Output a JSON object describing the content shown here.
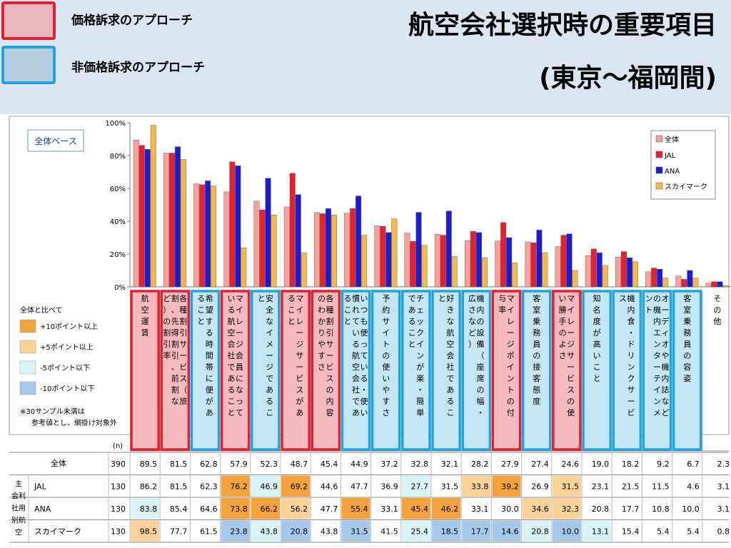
{
  "header": {
    "legend_price": "価格訴求のアプローチ",
    "legend_nonprice": "非価格訴求のアプローチ",
    "title_line1": "航空会社選択時の重要項目",
    "title_line2": "(東京～福岡間)",
    "price_color": "#e0202c",
    "price_fill": "#f6b9bf",
    "nonprice_color": "#1fa5dc",
    "nonprice_fill": "#c4e6f4"
  },
  "chart_data": {
    "type": "bar",
    "base_label": "全体ベース",
    "ylim": [
      0,
      100
    ],
    "yticks": [
      "0%",
      "20%",
      "40%",
      "60%",
      "80%",
      "100%"
    ],
    "n_label": "(n)",
    "categories": [
      "航空運賃",
      "各種割引サービス（旅割、先得割引、前割など）の割引率",
      "希望する時間帯に便があること",
      "マイレージ会員になっている航空会社であること",
      "安全なイメージであること",
      "マイレージサービスがあること",
      "各種割引サービスの内容のわかりやすさ",
      "いつも使っている・使い慣れている航空会社であること",
      "予約サイトの使いやすさ",
      "チェックインが楽・簡単であること",
      "好きな航空会社であること",
      "機内の設備（座席の幅・広さなど）",
      "マイレージポイントの付与率",
      "客室乗務員の接客態度",
      "マイレージサービスの使い勝手のよさ",
      "知名度が高いこと",
      "機内食・ドリンクサービス",
      "オーディオや機内誌などの機内エンターテインメント",
      "客室乗務員の容姿",
      "その他"
    ],
    "category_display": [
      [
        "航空運賃"
      ],
      [
        "各種割引サービス（旅",
        "割、先得割引、前割な",
        "ど）の割引率"
      ],
      [
        "希望する時間帯に便があ",
        "ること"
      ],
      [
        "マイレージ会員になって",
        "いる航空会社であること"
      ],
      [
        "安全なイメージであるこ",
        "と"
      ],
      [
        "マイレージサービスがあ",
        "ること"
      ],
      [
        "各種割引サービスの内容",
        "のわかりやすさ"
      ],
      [
        "いつも使っている・使い",
        "慣れている航空会社であ",
        "ること"
      ],
      [
        "予約サイトの使いやすさ"
      ],
      [
        "チェックインが楽・簡単",
        "であること"
      ],
      [
        "好きな航空会社であるこ",
        "と"
      ],
      [
        "機内の設備（座席の幅・",
        "広さなど）"
      ],
      [
        "マイレージポイントの付",
        "与率"
      ],
      [
        "客室乗務員の接客態度"
      ],
      [
        "マイレージサービスの使",
        "い勝手のよさ"
      ],
      [
        "知名度が高いこと"
      ],
      [
        "機内食・ドリンクサービ",
        "ス"
      ],
      [
        "オーディオや機内誌など",
        "の機内エンターテインメ",
        "ント"
      ],
      [
        "客室乗務員の容姿"
      ],
      [
        "その他"
      ]
    ],
    "category_type": [
      "price",
      "price",
      "nonprice",
      "price",
      "nonprice",
      "price",
      "price",
      "nonprice",
      "nonprice",
      "nonprice",
      "nonprice",
      "nonprice",
      "price",
      "nonprice",
      "price",
      "nonprice",
      "nonprice",
      "nonprice",
      "nonprice",
      "none"
    ],
    "series": [
      {
        "name": "全体",
        "n": 390,
        "color": "#f4a29a",
        "values": [
          89.5,
          81.5,
          62.8,
          57.9,
          52.3,
          48.7,
          45.4,
          44.9,
          37.2,
          32.8,
          32.1,
          28.2,
          27.9,
          27.4,
          24.6,
          19.0,
          18.2,
          9.2,
          6.7,
          2.3
        ]
      },
      {
        "name": "JAL",
        "n": 130,
        "color": "#e8202e",
        "values": [
          86.2,
          81.5,
          62.3,
          76.2,
          46.9,
          69.2,
          44.6,
          47.7,
          36.9,
          27.7,
          31.5,
          33.8,
          39.2,
          26.9,
          31.5,
          23.1,
          21.5,
          11.5,
          4.6,
          3.1
        ]
      },
      {
        "name": "ANA",
        "n": 130,
        "color": "#1b1bd6",
        "values": [
          83.8,
          85.4,
          64.6,
          73.8,
          66.2,
          56.2,
          47.7,
          55.4,
          33.1,
          45.4,
          46.2,
          33.1,
          30.0,
          34.6,
          32.3,
          20.8,
          17.7,
          10.8,
          10.0,
          3.1
        ]
      },
      {
        "name": "スカイマーク",
        "n": 130,
        "color": "#f5b849",
        "values": [
          98.5,
          77.7,
          61.5,
          23.8,
          43.8,
          20.8,
          43.8,
          31.5,
          41.5,
          25.4,
          18.5,
          17.7,
          14.6,
          20.8,
          10.0,
          13.1,
          15.4,
          5.4,
          5.4,
          0.8
        ]
      }
    ],
    "table": {
      "row_total_label": "全体",
      "group_label": "主利用航空会社別",
      "group_label_lines": [
        "主",
        "会利",
        "社用",
        "別航",
        "空"
      ],
      "rows": [
        {
          "label": "全体",
          "n": "390",
          "cells": [
            "89.5",
            "81.5",
            "62.8",
            "57.9",
            "52.3",
            "48.7",
            "45.4",
            "44.9",
            "37.2",
            "32.8",
            "32.1",
            "28.2",
            "27.9",
            "27.4",
            "24.6",
            "19.0",
            "18.2",
            "9.2",
            "6.7",
            "2.3"
          ],
          "highlight": [
            "",
            "",
            "",
            "",
            "",
            "",
            "",
            "",
            "",
            "",
            "",
            "",
            "",
            "",
            "",
            "",
            "",
            "",
            "",
            ""
          ]
        },
        {
          "label": "JAL",
          "n": "130",
          "cells": [
            "86.2",
            "81.5",
            "62.3",
            "76.2",
            "46.9",
            "69.2",
            "44.6",
            "47.7",
            "36.9",
            "27.7",
            "31.5",
            "33.8",
            "39.2",
            "26.9",
            "31.5",
            "23.1",
            "21.5",
            "11.5",
            "4.6",
            "3.1"
          ],
          "highlight": [
            "",
            "",
            "",
            "p10",
            "m5",
            "p10",
            "",
            "",
            "",
            "m5",
            "",
            "p5",
            "p10",
            "",
            "p5",
            "",
            "",
            "",
            "",
            ""
          ]
        },
        {
          "label": "ANA",
          "n": "130",
          "cells": [
            "83.8",
            "85.4",
            "64.6",
            "73.8",
            "66.2",
            "56.2",
            "47.7",
            "55.4",
            "33.1",
            "45.4",
            "46.2",
            "33.1",
            "30.0",
            "34.6",
            "32.3",
            "20.8",
            "17.7",
            "10.8",
            "10.0",
            "3.1"
          ],
          "highlight": [
            "m5",
            "",
            "",
            "p10",
            "p10",
            "p5",
            "",
            "p10",
            "",
            "p10",
            "p10",
            "",
            "",
            "p5",
            "p5",
            "",
            "",
            "",
            "",
            ""
          ]
        },
        {
          "label": "スカイマーク",
          "n": "130",
          "cells": [
            "98.5",
            "77.7",
            "61.5",
            "23.8",
            "43.8",
            "20.8",
            "43.8",
            "31.5",
            "41.5",
            "25.4",
            "18.5",
            "17.7",
            "14.6",
            "20.8",
            "10.0",
            "13.1",
            "15.4",
            "5.4",
            "5.4",
            "0.8"
          ],
          "highlight": [
            "p5",
            "",
            "",
            "m10",
            "m5",
            "m10",
            "",
            "m10",
            "",
            "m5",
            "m10",
            "m10",
            "m10",
            "m5",
            "m10",
            "m5",
            "",
            "",
            "",
            ""
          ]
        }
      ]
    },
    "comparison_legend": {
      "title": "全体と比べて",
      "items": [
        {
          "key": "p10",
          "label": "+10ポイント以上",
          "color": "#f4a23c"
        },
        {
          "key": "p5",
          "label": "+5ポイント以上",
          "color": "#fbd29a"
        },
        {
          "key": "m5",
          "label": "-5ポイント以下",
          "color": "#d9f4f6"
        },
        {
          "key": "m10",
          "label": "-10ポイント以下",
          "color": "#a6c8ea"
        }
      ],
      "note_line1": "※30サンプル未満は",
      "note_line2": "参考値とし、網掛け対象外"
    }
  }
}
